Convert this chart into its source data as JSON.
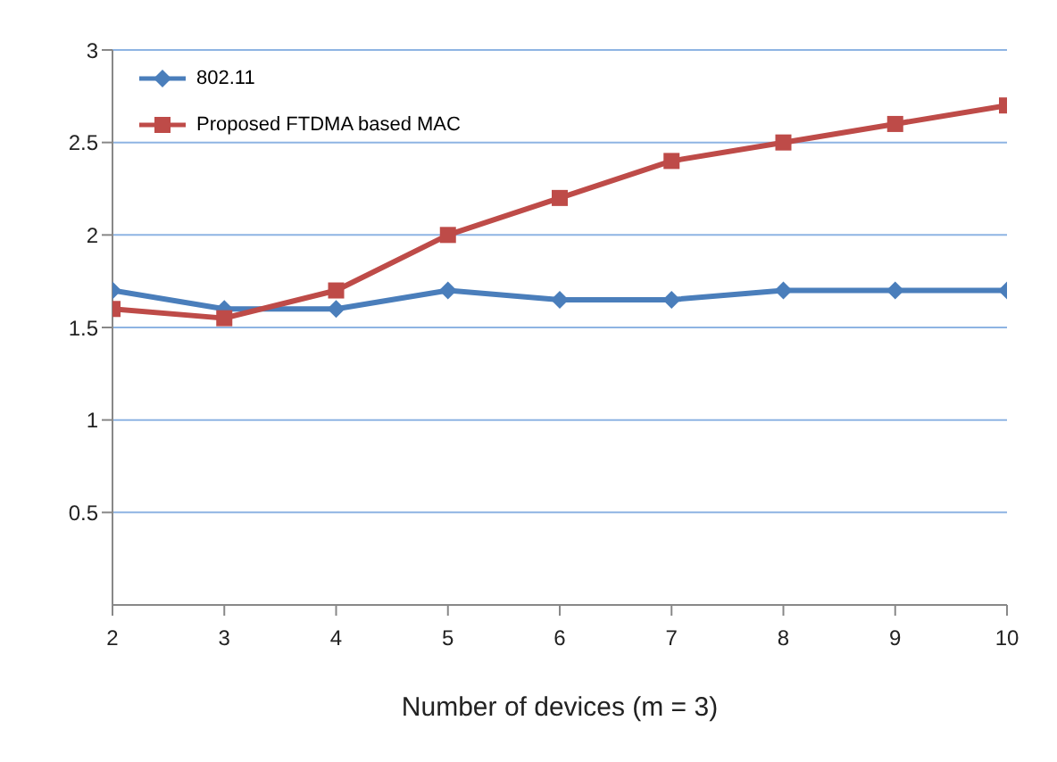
{
  "chart_data": {
    "type": "line",
    "xlabel": "Number of devices (m = 3)",
    "x": [
      2,
      3,
      4,
      5,
      6,
      7,
      8,
      9,
      10
    ],
    "xlim": [
      2,
      10
    ],
    "xticks": [
      2,
      3,
      4,
      5,
      6,
      7,
      8,
      9,
      10
    ],
    "ylim": [
      0,
      3
    ],
    "yticks": [
      0.5,
      1,
      1.5,
      2,
      2.5,
      3
    ],
    "grid": "y",
    "legend": "top left",
    "line_style": "solid",
    "series": [
      {
        "name": "802.11",
        "color": "#4a7ebb",
        "marker": "diamond",
        "values": [
          1.7,
          1.6,
          1.6,
          1.7,
          1.65,
          1.65,
          1.7,
          1.7,
          1.7
        ]
      },
      {
        "name": "Proposed FTDMA based MAC",
        "color": "#be4b48",
        "marker": "square",
        "values": [
          1.6,
          1.55,
          1.7,
          2.0,
          2.2,
          2.4,
          2.5,
          2.6,
          2.7
        ]
      }
    ]
  }
}
